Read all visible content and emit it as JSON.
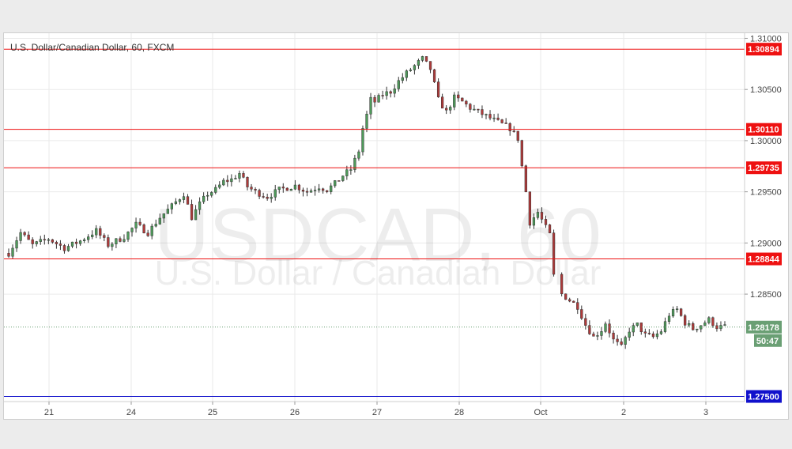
{
  "chart_data": {
    "type": "candlestick",
    "title": "U.S. Dollar/Canadian Dollar, 60, FXCM",
    "watermark": {
      "symbol": "USDCAD, 60",
      "description": "U.S. Dollar / Canadian Dollar"
    },
    "ylim": [
      1.2745,
      1.3105
    ],
    "y_ticks": [
      "1.31000",
      "1.30500",
      "1.30000",
      "1.29500",
      "1.29000",
      "1.28500"
    ],
    "x_ticks": [
      "21",
      "24",
      "25",
      "26",
      "27",
      "28",
      "Oct",
      "2",
      "3"
    ],
    "grid": true,
    "colors": {
      "up": "#4e9a5a",
      "down": "#b03a3a",
      "resistance": "#cc0000",
      "support": "#0000cc",
      "last": "#6a9f74"
    },
    "levels": [
      {
        "value": 1.30894,
        "label": "1.30894",
        "color": "#ee1111"
      },
      {
        "value": 1.3011,
        "label": "1.30110",
        "color": "#ee1111"
      },
      {
        "value": 1.29735,
        "label": "1.29735",
        "color": "#ee1111"
      },
      {
        "value": 1.28844,
        "label": "1.28844",
        "color": "#ee1111"
      },
      {
        "value": 1.275,
        "label": "1.27500",
        "color": "#1111cc"
      }
    ],
    "last_price": {
      "value": 1.28178,
      "label": "1.28178",
      "countdown": "50:47"
    },
    "series_path": [
      [
        0,
        1.289
      ],
      [
        3,
        1.291
      ],
      [
        6,
        1.2898
      ],
      [
        10,
        1.2904
      ],
      [
        14,
        1.2895
      ],
      [
        18,
        1.2902
      ],
      [
        22,
        1.2912
      ],
      [
        25,
        1.2898
      ],
      [
        29,
        1.2906
      ],
      [
        32,
        1.2918
      ],
      [
        35,
        1.291
      ],
      [
        38,
        1.2925
      ],
      [
        41,
        1.2936
      ],
      [
        44,
        1.2948
      ],
      [
        46,
        1.2925
      ],
      [
        48,
        1.2938
      ],
      [
        50,
        1.2948
      ],
      [
        52,
        1.2952
      ],
      [
        54,
        1.296
      ],
      [
        56,
        1.2962
      ],
      [
        58,
        1.2968
      ],
      [
        60,
        1.2955
      ],
      [
        62,
        1.295
      ],
      [
        65,
        1.2945
      ],
      [
        68,
        1.2952
      ],
      [
        72,
        1.2956
      ],
      [
        75,
        1.295
      ],
      [
        78,
        1.2955
      ],
      [
        80,
        1.2952
      ],
      [
        82,
        1.2958
      ],
      [
        84,
        1.2966
      ],
      [
        86,
        1.2972
      ],
      [
        88,
        1.299
      ],
      [
        89,
        1.3012
      ],
      [
        90,
        1.3025
      ],
      [
        91,
        1.304
      ],
      [
        92,
        1.3038
      ],
      [
        94,
        1.3045
      ],
      [
        96,
        1.3048
      ],
      [
        98,
        1.3058
      ],
      [
        100,
        1.3066
      ],
      [
        102,
        1.3073
      ],
      [
        104,
        1.308
      ],
      [
        106,
        1.307
      ],
      [
        108,
        1.304
      ],
      [
        110,
        1.3028
      ],
      [
        112,
        1.3042
      ],
      [
        114,
        1.3038
      ],
      [
        116,
        1.3032
      ],
      [
        118,
        1.3028
      ],
      [
        120,
        1.3024
      ],
      [
        122,
        1.302
      ],
      [
        124,
        1.3016
      ],
      [
        126,
        1.3012
      ],
      [
        128,
        1.3002
      ],
      [
        129,
        1.2975
      ],
      [
        130,
        1.295
      ],
      [
        131,
        1.292
      ],
      [
        133,
        1.293
      ],
      [
        135,
        1.2915
      ],
      [
        136,
        1.2908
      ],
      [
        137,
        1.2868
      ],
      [
        139,
        1.285
      ],
      [
        141,
        1.2844
      ],
      [
        143,
        1.2838
      ],
      [
        145,
        1.282
      ],
      [
        147,
        1.2808
      ],
      [
        149,
        1.2815
      ],
      [
        150,
        1.2822
      ],
      [
        152,
        1.2805
      ],
      [
        154,
        1.2798
      ],
      [
        156,
        1.2815
      ],
      [
        158,
        1.282
      ],
      [
        160,
        1.281
      ],
      [
        162,
        1.2808
      ],
      [
        164,
        1.2814
      ],
      [
        166,
        1.283
      ],
      [
        168,
        1.2835
      ],
      [
        170,
        1.2822
      ],
      [
        172,
        1.2816
      ],
      [
        174,
        1.282
      ],
      [
        176,
        1.2825
      ],
      [
        178,
        1.2818
      ],
      [
        180,
        1.2818
      ]
    ]
  }
}
